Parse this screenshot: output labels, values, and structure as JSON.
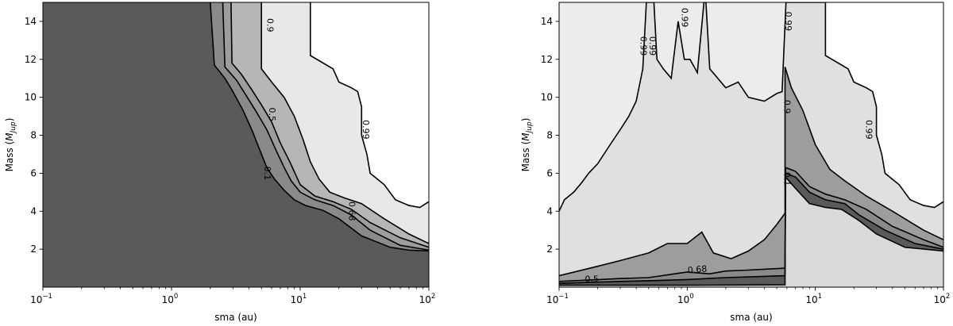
{
  "chart_data": [
    {
      "type": "contour",
      "panel": "left",
      "xlabel": "sma (au)",
      "ylabel_main": "Mass (",
      "ylabel_sym": "M",
      "ylabel_sub": "Jup",
      "ylabel_close": ")",
      "xscale": "log",
      "xlim": [
        0.1,
        100
      ],
      "ylim": [
        0,
        15
      ],
      "x_ticks": [
        {
          "value": 0.1,
          "base": "10",
          "exp": "−1"
        },
        {
          "value": 1,
          "base": "10",
          "exp": "0"
        },
        {
          "value": 10,
          "base": "10",
          "exp": "1"
        },
        {
          "value": 100,
          "base": "10",
          "exp": "2"
        }
      ],
      "y_ticks": [
        {
          "value": 2,
          "label": "2"
        },
        {
          "value": 4,
          "label": "4"
        },
        {
          "value": 6,
          "label": "6"
        },
        {
          "value": 8,
          "label": "8"
        },
        {
          "value": 10,
          "label": "10"
        },
        {
          "value": 12,
          "label": "12"
        },
        {
          "value": 14,
          "label": "14"
        }
      ],
      "levels": [
        {
          "level": 0.1,
          "label": "0.1",
          "label_at": [
            5.5,
            6.0
          ],
          "color": "#8a8a8a",
          "boundary": [
            [
              2.0,
              15
            ],
            [
              2.15,
              11.7
            ],
            [
              2.6,
              11.0
            ],
            [
              3.0,
              10.3
            ],
            [
              3.6,
              9.3
            ],
            [
              4.2,
              8.3
            ],
            [
              4.8,
              7.3
            ],
            [
              5.5,
              6.3
            ],
            [
              6.3,
              5.7
            ],
            [
              7.5,
              5.1
            ],
            [
              9.0,
              4.6
            ],
            [
              11,
              4.3
            ],
            [
              15,
              4.05
            ],
            [
              20,
              3.6
            ],
            [
              30,
              2.7
            ],
            [
              50,
              2.1
            ],
            [
              70,
              1.95
            ],
            [
              100,
              1.9
            ]
          ]
        },
        {
          "level": 0.5,
          "label": "0.5",
          "label_at": [
            6.0,
            9.1
          ],
          "color": "#9d9d9d",
          "boundary": [
            [
              2.5,
              15
            ],
            [
              2.6,
              11.6
            ],
            [
              3.2,
              10.9
            ],
            [
              3.8,
              10.1
            ],
            [
              4.5,
              9.3
            ],
            [
              5.5,
              8.3
            ],
            [
              6.5,
              7.2
            ],
            [
              7.5,
              6.3
            ],
            [
              8.5,
              5.6
            ],
            [
              10,
              5.0
            ],
            [
              13,
              4.6
            ],
            [
              18,
              4.3
            ],
            [
              25,
              3.8
            ],
            [
              35,
              3.0
            ],
            [
              60,
              2.2
            ],
            [
              100,
              1.95
            ]
          ]
        },
        {
          "level": 0.68,
          "label": "0.68",
          "label_at": [
            25,
            4.0
          ],
          "color": "#b6b6b6",
          "boundary": [
            [
              2.9,
              15
            ],
            [
              2.95,
              11.8
            ],
            [
              3.5,
              11.2
            ],
            [
              4.2,
              10.4
            ],
            [
              5.0,
              9.6
            ],
            [
              6.0,
              8.7
            ],
            [
              7.0,
              7.6
            ],
            [
              8.3,
              6.6
            ],
            [
              10,
              5.4
            ],
            [
              13,
              4.8
            ],
            [
              18,
              4.5
            ],
            [
              25,
              4.1
            ],
            [
              35,
              3.4
            ],
            [
              60,
              2.6
            ],
            [
              100,
              2.1
            ]
          ]
        },
        {
          "level": 0.9,
          "label": "0.9",
          "label_at": [
            5.8,
            13.8
          ],
          "color": "#e8e8e8",
          "boundary": [
            [
              5.0,
              15
            ],
            [
              5.0,
              11.5
            ],
            [
              6.0,
              10.8
            ],
            [
              7.5,
              10.0
            ],
            [
              9.0,
              9.0
            ],
            [
              10.5,
              7.8
            ],
            [
              12,
              6.6
            ],
            [
              14,
              5.7
            ],
            [
              17,
              5.0
            ],
            [
              22,
              4.7
            ],
            [
              30,
              4.4
            ],
            [
              45,
              3.6
            ],
            [
              70,
              2.8
            ],
            [
              100,
              2.3
            ]
          ]
        },
        {
          "level": 0.99,
          "label": "0.99",
          "label_at": [
            32,
            8.3
          ],
          "color": "#ffffff",
          "boundary": [
            [
              12,
              15
            ],
            [
              12,
              12.2
            ],
            [
              18,
              11.5
            ],
            [
              20,
              10.8
            ],
            [
              25,
              10.5
            ],
            [
              28,
              10.3
            ],
            [
              30,
              9.5
            ],
            [
              30,
              8.0
            ],
            [
              33,
              7.0
            ],
            [
              35,
              6.0
            ],
            [
              45,
              5.4
            ],
            [
              55,
              4.6
            ],
            [
              70,
              4.3
            ],
            [
              85,
              4.2
            ],
            [
              100,
              4.5
            ]
          ]
        }
      ]
    },
    {
      "type": "contour",
      "panel": "right",
      "xlabel": "sma (au)",
      "ylabel_main": "Mass (",
      "ylabel_sym": "M",
      "ylabel_sub": "Jup",
      "ylabel_close": ")",
      "xscale": "log",
      "xlim": [
        0.1,
        100
      ],
      "ylim": [
        0,
        15
      ],
      "x_ticks": [
        {
          "value": 0.1,
          "base": "10",
          "exp": "−1"
        },
        {
          "value": 1,
          "base": "10",
          "exp": "0"
        },
        {
          "value": 10,
          "base": "10",
          "exp": "1"
        },
        {
          "value": 100,
          "base": "10",
          "exp": "2"
        }
      ],
      "y_ticks": [
        {
          "value": 2,
          "label": "2"
        },
        {
          "value": 4,
          "label": "4"
        },
        {
          "value": 6,
          "label": "6"
        },
        {
          "value": 8,
          "label": "8"
        },
        {
          "value": 10,
          "label": "10"
        },
        {
          "value": 12,
          "label": "12"
        },
        {
          "value": 14,
          "label": "14"
        }
      ],
      "labels": [
        {
          "text": "0.99",
          "at": [
            0.45,
            12.7
          ],
          "rotate": 90
        },
        {
          "text": "0.99",
          "at": [
            0.53,
            12.7
          ],
          "rotate": 90
        },
        {
          "text": "0.99",
          "at": [
            0.95,
            14.2
          ],
          "rotate": 90
        },
        {
          "text": "0.99",
          "at": [
            6.1,
            14.0
          ],
          "rotate": 90
        },
        {
          "text": "0.99",
          "at": [
            26,
            8.3
          ],
          "rotate": 90
        },
        {
          "text": "0.9",
          "at": [
            5.95,
            9.5
          ],
          "rotate": 90
        },
        {
          "text": "0.1",
          "at": [
            5.95,
            5.7
          ],
          "rotate": 90
        },
        {
          "text": "0.68",
          "at": [
            1.2,
            0.9
          ],
          "rotate": -5
        },
        {
          "text": "0.5",
          "at": [
            0.18,
            0.4
          ],
          "rotate": 0
        }
      ],
      "levels": [
        {
          "level": 0.1,
          "color": "#5a5a5a",
          "boundary": [
            [
              0.1,
              0.1
            ],
            [
              1,
              0.1
            ],
            [
              5.8,
              0.12
            ],
            [
              5.8,
              0.25
            ],
            [
              5.85,
              5.8
            ],
            [
              7,
              5.2
            ],
            [
              9,
              4.4
            ],
            [
              12,
              4.2
            ],
            [
              16,
              4.1
            ],
            [
              22,
              3.5
            ],
            [
              30,
              2.8
            ],
            [
              50,
              2.1
            ],
            [
              100,
              1.9
            ]
          ]
        },
        {
          "level": 0.5,
          "color": "#8a8a8a",
          "boundary": [
            [
              0.1,
              0.2
            ],
            [
              0.3,
              0.3
            ],
            [
              0.6,
              0.35
            ],
            [
              1,
              0.4
            ],
            [
              2,
              0.5
            ],
            [
              5.8,
              0.6
            ],
            [
              5.85,
              6.0
            ],
            [
              7,
              5.8
            ],
            [
              9,
              5.0
            ],
            [
              12,
              4.6
            ],
            [
              17,
              4.4
            ],
            [
              22,
              3.8
            ],
            [
              35,
              3.0
            ],
            [
              60,
              2.3
            ],
            [
              100,
              2.0
            ]
          ]
        },
        {
          "level": 0.68,
          "color": "#9d9d9d",
          "boundary": [
            [
              0.1,
              0.3
            ],
            [
              0.3,
              0.45
            ],
            [
              0.5,
              0.5
            ],
            [
              0.8,
              0.7
            ],
            [
              1,
              0.8
            ],
            [
              1.5,
              0.7
            ],
            [
              2,
              0.85
            ],
            [
              3,
              0.9
            ],
            [
              5.8,
              1.0
            ],
            [
              5.85,
              6.3
            ],
            [
              7,
              6.1
            ],
            [
              9,
              5.3
            ],
            [
              12,
              4.9
            ],
            [
              17,
              4.6
            ],
            [
              25,
              4.1
            ],
            [
              40,
              3.2
            ],
            [
              70,
              2.5
            ],
            [
              100,
              2.1
            ]
          ]
        },
        {
          "level": 0.9,
          "color": "#e0e0e0",
          "boundary": [
            [
              0.1,
              0.6
            ],
            [
              0.2,
              1.1
            ],
            [
              0.3,
              1.4
            ],
            [
              0.5,
              1.8
            ],
            [
              0.7,
              2.3
            ],
            [
              1.0,
              2.3
            ],
            [
              1.3,
              2.9
            ],
            [
              1.6,
              1.8
            ],
            [
              2.2,
              1.5
            ],
            [
              3.0,
              1.9
            ],
            [
              4.0,
              2.5
            ],
            [
              5.0,
              3.3
            ],
            [
              5.8,
              3.9
            ],
            [
              5.8,
              11.6
            ],
            [
              6.5,
              10.5
            ],
            [
              8,
              9.3
            ],
            [
              10,
              7.5
            ],
            [
              13,
              6.2
            ],
            [
              17,
              5.6
            ],
            [
              25,
              4.8
            ],
            [
              40,
              4.0
            ],
            [
              70,
              3.0
            ],
            [
              100,
              2.5
            ]
          ]
        },
        {
          "level": 0.99,
          "color": "#ececec",
          "boundary": [
            [
              0.1,
              4.0
            ],
            [
              0.11,
              4.6
            ],
            [
              0.13,
              5.0
            ],
            [
              0.15,
              5.5
            ],
            [
              0.17,
              6.0
            ],
            [
              0.2,
              6.5
            ],
            [
              0.25,
              7.5
            ],
            [
              0.3,
              8.3
            ],
            [
              0.35,
              9.0
            ],
            [
              0.4,
              9.8
            ],
            [
              0.45,
              11.5
            ],
            [
              0.48,
              15
            ],
            [
              0.55,
              15
            ],
            [
              0.58,
              12
            ],
            [
              0.65,
              11.5
            ],
            [
              0.75,
              11.0
            ],
            [
              0.85,
              14
            ],
            [
              0.95,
              12
            ],
            [
              1.05,
              12
            ],
            [
              1.2,
              11.3
            ],
            [
              1.35,
              15
            ],
            [
              1.4,
              15
            ],
            [
              1.5,
              11.5
            ],
            [
              2,
              10.5
            ],
            [
              2.5,
              10.8
            ],
            [
              3,
              10.0
            ],
            [
              4,
              9.8
            ],
            [
              5,
              10.2
            ],
            [
              5.5,
              10.3
            ],
            [
              5.9,
              15
            ]
          ]
        },
        {
          "level": 0.99,
          "color": "#ffffff",
          "boundary": [
            [
              5.9,
              15
            ],
            [
              12,
              15
            ],
            [
              12,
              12.2
            ],
            [
              18,
              11.5
            ],
            [
              20,
              10.8
            ],
            [
              25,
              10.5
            ],
            [
              28,
              10.3
            ],
            [
              30,
              9.5
            ],
            [
              30,
              8.0
            ],
            [
              33,
              7.0
            ],
            [
              35,
              6.0
            ],
            [
              45,
              5.4
            ],
            [
              55,
              4.6
            ],
            [
              70,
              4.3
            ],
            [
              85,
              4.2
            ],
            [
              100,
              4.5
            ]
          ]
        }
      ]
    }
  ]
}
